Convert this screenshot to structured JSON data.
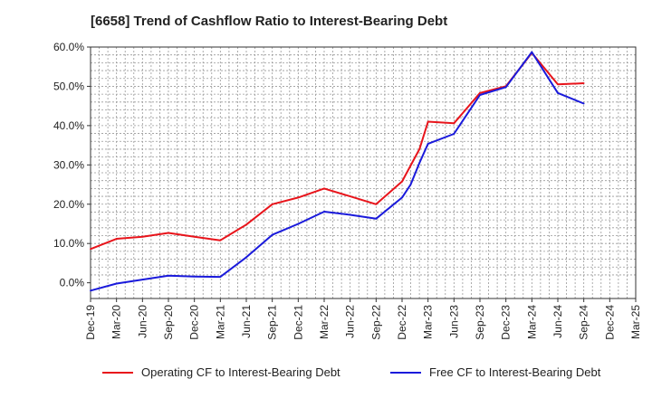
{
  "title": "[6658]  Trend of Cashflow Ratio to Interest-Bearing Debt",
  "colors": {
    "operating": "#e8141b",
    "free": "#1a1adb",
    "grid": "#999999",
    "axis": "#333333"
  },
  "chart_data": {
    "type": "line",
    "title": "[6658]  Trend of Cashflow Ratio to Interest-Bearing Debt",
    "xlabel": "",
    "ylabel": "",
    "ylim": [
      -4,
      60
    ],
    "yticks": [
      0,
      10,
      20,
      30,
      40,
      50,
      60
    ],
    "ytick_labels": [
      "0.0%",
      "10.0%",
      "20.0%",
      "30.0%",
      "40.0%",
      "50.0%",
      "60.0%"
    ],
    "xtick_labels": [
      "Dec-19",
      "Mar-20",
      "Jun-20",
      "Sep-20",
      "Dec-20",
      "Mar-21",
      "Jun-21",
      "Sep-21",
      "Dec-21",
      "Mar-22",
      "Jun-22",
      "Sep-22",
      "Dec-22",
      "Mar-23",
      "Jun-23",
      "Sep-23",
      "Dec-23",
      "Mar-24",
      "Jun-24",
      "Sep-24",
      "Dec-24",
      "Mar-25"
    ],
    "grid": true,
    "legend_position": "bottom",
    "series": [
      {
        "name": "Operating CF to Interest-Bearing Debt",
        "color": "#e8141b",
        "points": [
          [
            0,
            8.6
          ],
          [
            1,
            11.2
          ],
          [
            2,
            11.7
          ],
          [
            3,
            12.7
          ],
          [
            4,
            11.7
          ],
          [
            5,
            10.8
          ],
          [
            6,
            14.8
          ],
          [
            7,
            20.0
          ],
          [
            8,
            21.7
          ],
          [
            9,
            24.0
          ],
          [
            10,
            22.0
          ],
          [
            11,
            20.0
          ],
          [
            12,
            25.8
          ],
          [
            12.67,
            34.0
          ],
          [
            13,
            41.0
          ],
          [
            14,
            40.6
          ],
          [
            15,
            48.3
          ],
          [
            16,
            50.0
          ],
          [
            17,
            58.5
          ],
          [
            18,
            50.5
          ],
          [
            19,
            50.8
          ]
        ]
      },
      {
        "name": "Free CF to Interest-Bearing Debt",
        "color": "#1a1adb",
        "points": [
          [
            0,
            -2.0
          ],
          [
            1,
            -0.2
          ],
          [
            2,
            0.8
          ],
          [
            3,
            1.8
          ],
          [
            4,
            1.6
          ],
          [
            5,
            1.5
          ],
          [
            6,
            6.5
          ],
          [
            7,
            12.2
          ],
          [
            8,
            15.0
          ],
          [
            9,
            18.1
          ],
          [
            10,
            17.3
          ],
          [
            11,
            16.3
          ],
          [
            12,
            21.7
          ],
          [
            12.33,
            25.0
          ],
          [
            12.67,
            30.5
          ],
          [
            13,
            35.4
          ],
          [
            14,
            37.9
          ],
          [
            15,
            47.8
          ],
          [
            16,
            49.8
          ],
          [
            17,
            58.7
          ],
          [
            18,
            48.3
          ],
          [
            19,
            45.6
          ]
        ]
      }
    ]
  }
}
